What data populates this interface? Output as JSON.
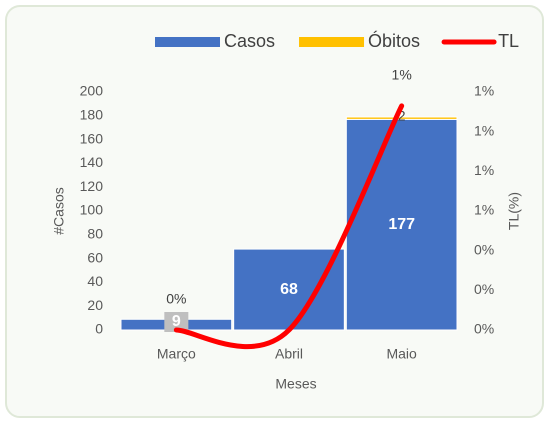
{
  "chart_data": {
    "type": "bar",
    "categories": [
      "Março",
      "Abril",
      "Maio"
    ],
    "series": [
      {
        "name": "Casos",
        "color": "#4472c4",
        "values": [
          9,
          68,
          177
        ]
      },
      {
        "name": "Óbitos",
        "color": "#ffc000",
        "values": [
          0,
          0,
          2
        ]
      },
      {
        "name": "TL",
        "color": "#ff0000",
        "type": "line",
        "axis": "y2",
        "values": [
          0,
          0,
          1.13
        ],
        "value_labels": [
          "0%",
          null,
          "1%"
        ]
      }
    ],
    "stacked": true,
    "xlabel": "Meses",
    "ylabel": "#Casos",
    "y2label": "TL(%)",
    "ylim": [
      0,
      200
    ],
    "yticks": [
      0,
      20,
      40,
      60,
      80,
      100,
      120,
      140,
      160,
      180,
      200
    ],
    "y2lim": [
      0,
      1.2
    ],
    "y2ticks": [
      {
        "value": 0,
        "label": "0%"
      },
      {
        "value": 0.2,
        "label": "0%"
      },
      {
        "value": 0.4,
        "label": "0%"
      },
      {
        "value": 0.6,
        "label": "1%"
      },
      {
        "value": 0.8,
        "label": "1%"
      },
      {
        "value": 1.0,
        "label": "1%"
      },
      {
        "value": 1.2,
        "label": "1%"
      }
    ],
    "legend": "top"
  }
}
